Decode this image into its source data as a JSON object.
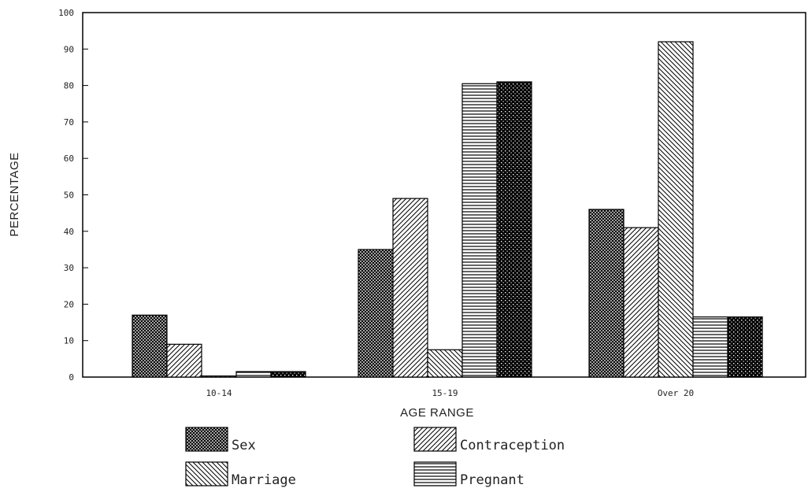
{
  "chart_data": {
    "type": "bar",
    "title": "",
    "xlabel": "AGE RANGE",
    "ylabel": "PERCENTAGE",
    "ylim": [
      0,
      100
    ],
    "yticks": [
      0,
      10,
      20,
      30,
      40,
      50,
      60,
      70,
      80,
      90,
      100
    ],
    "categories": [
      "10-14",
      "15-19",
      "Over 20"
    ],
    "grid": false,
    "legend_position": "bottom",
    "series": [
      {
        "name": "Sex",
        "values": [
          17,
          35,
          46
        ]
      },
      {
        "name": "Contraception",
        "values": [
          9,
          49,
          41
        ]
      },
      {
        "name": "Marriage",
        "values": [
          0.3,
          7.5,
          92
        ]
      },
      {
        "name": "Pregnant",
        "values": [
          1.5,
          80.5,
          16.5
        ]
      },
      {
        "name": "",
        "values": [
          1.5,
          81,
          16.5
        ]
      }
    ],
    "legend_entries": [
      "Sex",
      "Contraception",
      "Marriage",
      "Pregnant"
    ]
  }
}
